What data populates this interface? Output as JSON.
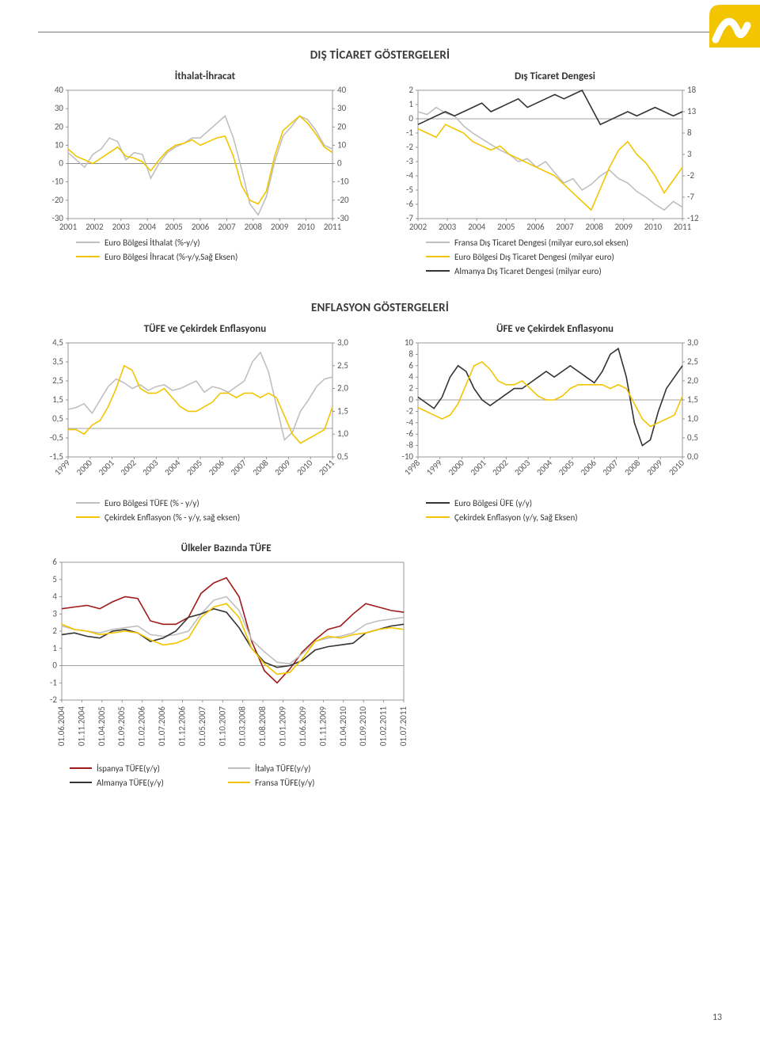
{
  "page_number": "13",
  "sections": {
    "trade": "DIŞ TİCARET GÖSTERGELERİ",
    "inflation": "ENFLASYON GÖSTERGELERİ"
  },
  "charts": {
    "import_export": {
      "type": "line_dual_axis",
      "title": "İthalat-İhracat",
      "xlabels": [
        "2001",
        "2002",
        "2003",
        "2004",
        "2005",
        "2006",
        "2007",
        "2008",
        "2009",
        "2010",
        "2011"
      ],
      "yleft": {
        "min": -30,
        "max": 40,
        "step": 10
      },
      "yright": {
        "min": -30,
        "max": 40,
        "step": 10
      },
      "series": [
        {
          "name": "Euro Bölgesi İthalat (%-y/y)",
          "color": "#bfbfbf",
          "width": 1.6,
          "points": [
            6,
            2,
            -2,
            5,
            8,
            14,
            12,
            2,
            6,
            5,
            -8,
            0,
            6,
            9,
            11,
            14,
            14,
            18,
            22,
            26,
            14,
            -3,
            -22,
            -28,
            -18,
            1,
            15,
            20,
            26,
            24,
            18,
            10,
            8
          ]
        },
        {
          "name": "Euro Bölgesi İhracat (%-y/y,Sağ Eksen)",
          "color": "#f2c500",
          "width": 1.6,
          "points": [
            8,
            4,
            2,
            0,
            3,
            6,
            9,
            4,
            3,
            1,
            -4,
            2,
            7,
            10,
            11,
            13,
            10,
            12,
            14,
            15,
            4,
            -12,
            -20,
            -22,
            -15,
            4,
            18,
            22,
            26,
            22,
            16,
            9,
            6
          ]
        }
      ],
      "legend": [
        {
          "color": "#bfbfbf",
          "label": "Euro Bölgesi İthalat (%-y/y)"
        },
        {
          "color": "#f2c500",
          "label": "Euro Bölgesi İhracat (%-y/y,Sağ Eksen)"
        }
      ]
    },
    "trade_balance": {
      "type": "line_dual_axis",
      "title": "Dış Ticaret Dengesi",
      "xlabels": [
        "2002",
        "2003",
        "2004",
        "2005",
        "2006",
        "2007",
        "2008",
        "2009",
        "2010",
        "2011"
      ],
      "yleft": {
        "min": -7,
        "max": 2,
        "step": 1
      },
      "yright": {
        "min": -12,
        "max": 18,
        "step": 5
      },
      "series": [
        {
          "name": "Fransa Dış Ticaret Dengesi (milyar euro,sol eksen)",
          "color": "#bfbfbf",
          "width": 1.6,
          "points": [
            0.5,
            0.3,
            0.8,
            0.4,
            0.2,
            -0.5,
            -1.0,
            -1.4,
            -1.8,
            -2.2,
            -2.5,
            -3.0,
            -2.8,
            -3.4,
            -3.0,
            -3.8,
            -4.5,
            -4.2,
            -5.0,
            -4.6,
            -4.0,
            -3.6,
            -4.2,
            -4.5,
            -5.1,
            -5.5,
            -6.0,
            -6.4,
            -5.8,
            -6.2
          ]
        },
        {
          "name": "Euro Bölgesi Dış Ticaret Dengesi (milyar euro)",
          "color": "#f2c500",
          "width": 1.6,
          "points": [
            9,
            8,
            7,
            10,
            9,
            8,
            6,
            5,
            4,
            5,
            3,
            2,
            1,
            0,
            -1,
            -2,
            -4,
            -6,
            -8,
            -10,
            -5,
            0,
            4,
            6,
            3,
            1,
            -2,
            -6,
            -3,
            0
          ]
        },
        {
          "name": "Almanya Dış Ticaret Dengesi (milyar euro)",
          "color": "#333333",
          "width": 1.6,
          "points": [
            10,
            11,
            12,
            13,
            12,
            13,
            14,
            15,
            13,
            14,
            15,
            16,
            14,
            15,
            16,
            17,
            16,
            17,
            18,
            14,
            10,
            11,
            12,
            13,
            12,
            13,
            14,
            13,
            12,
            13
          ]
        }
      ],
      "legend": [
        {
          "color": "#bfbfbf",
          "label": "Fransa Dış Ticaret Dengesi (milyar euro,sol eksen)"
        },
        {
          "color": "#f2c500",
          "label": "Euro Bölgesi Dış Ticaret Dengesi (milyar euro)"
        },
        {
          "color": "#333333",
          "label": "Almanya Dış Ticaret Dengesi (milyar euro)"
        }
      ]
    },
    "cpi_core": {
      "type": "line_dual_axis",
      "title": "TÜFE ve Çekirdek Enflasyonu",
      "xlabels": [
        "1999",
        "2000",
        "2001",
        "2002",
        "2003",
        "2004",
        "2005",
        "2006",
        "2007",
        "2008",
        "2009",
        "2010",
        "2011"
      ],
      "xlabel_rotate": -45,
      "yleft": {
        "min": -1.5,
        "max": 4.5,
        "step": 1.0,
        "decimals": 1
      },
      "yright": {
        "min": 0.5,
        "max": 3.0,
        "step": 0.5,
        "decimals": 1
      },
      "series": [
        {
          "name": "Euro Bölgesi TÜFE (% - y/y)",
          "color": "#bfbfbf",
          "width": 1.6,
          "points": [
            1.0,
            1.1,
            1.3,
            0.8,
            1.5,
            2.2,
            2.6,
            2.4,
            2.1,
            2.3,
            2.0,
            2.2,
            2.3,
            2.0,
            2.1,
            2.3,
            2.5,
            1.9,
            2.2,
            2.1,
            1.9,
            2.2,
            2.5,
            3.5,
            4.0,
            3.0,
            1.2,
            -0.6,
            -0.2,
            0.9,
            1.5,
            2.2,
            2.6,
            2.7
          ]
        },
        {
          "name": "Çekirdek Enflasyon (% - y/y, sağ eksen)",
          "color": "#f2c500",
          "width": 1.6,
          "points": [
            1.1,
            1.1,
            1.0,
            1.2,
            1.3,
            1.6,
            2.0,
            2.5,
            2.4,
            2.0,
            1.9,
            1.9,
            2.0,
            1.8,
            1.6,
            1.5,
            1.5,
            1.6,
            1.7,
            1.9,
            1.9,
            1.8,
            1.9,
            1.9,
            1.8,
            1.9,
            1.8,
            1.4,
            1.0,
            0.8,
            0.9,
            1.0,
            1.1,
            1.6
          ]
        }
      ],
      "legend": [
        {
          "color": "#bfbfbf",
          "label": "Euro Bölgesi TÜFE (% - y/y)"
        },
        {
          "color": "#f2c500",
          "label": "Çekirdek Enflasyon (% - y/y, sağ eksen)"
        }
      ]
    },
    "ppi_core": {
      "type": "line_dual_axis",
      "title": "ÜFE ve Çekirdek Enflasyonu",
      "xlabels": [
        "1998",
        "1999",
        "2000",
        "2001",
        "2002",
        "2003",
        "2004",
        "2005",
        "2006",
        "2007",
        "2008",
        "2009",
        "2010"
      ],
      "xlabel_rotate": -45,
      "yleft": {
        "min": -10,
        "max": 10,
        "step": 2
      },
      "yright": {
        "min": 0.0,
        "max": 3.0,
        "step": 0.5,
        "decimals": 1
      },
      "series": [
        {
          "name": "Euro Bölgesi ÜFE (y/y)",
          "color": "#333333",
          "width": 1.6,
          "points": [
            0.5,
            -0.5,
            -1.5,
            0.5,
            4,
            6,
            5,
            2,
            0,
            -1,
            0,
            1,
            2,
            2,
            3,
            4,
            5,
            4,
            5,
            6,
            5,
            4,
            3,
            5,
            8,
            9,
            4,
            -4,
            -8,
            -7,
            -2,
            2,
            4,
            6
          ]
        },
        {
          "name": "Çekirdek Enflasyon (y/y, Sağ Eksen)",
          "color": "#f2c500",
          "width": 1.6,
          "points": [
            1.3,
            1.2,
            1.1,
            1.0,
            1.1,
            1.4,
            1.9,
            2.4,
            2.5,
            2.3,
            2.0,
            1.9,
            1.9,
            2.0,
            1.8,
            1.6,
            1.5,
            1.5,
            1.6,
            1.8,
            1.9,
            1.9,
            1.9,
            1.9,
            1.8,
            1.9,
            1.8,
            1.4,
            1.0,
            0.8,
            0.9,
            1.0,
            1.1,
            1.6
          ]
        }
      ],
      "legend": [
        {
          "color": "#333333",
          "label": "Euro Bölgesi ÜFE (y/y)"
        },
        {
          "color": "#f2c500",
          "label": "Çekirdek Enflasyon (y/y, Sağ Eksen)"
        }
      ]
    },
    "country_cpi": {
      "type": "multiline",
      "title": "Ülkeler Bazında  TÜFE",
      "xlabels": [
        "01.06.2004",
        "01.11.2004",
        "01.04.2005",
        "01.09.2005",
        "01.02.2006",
        "01.07.2006",
        "01.12.2006",
        "01.05.2007",
        "01.10.2007",
        "01.03.2008",
        "01.08.2008",
        "01.01.2009",
        "01.06.2009",
        "01.11.2009",
        "01.04.2010",
        "01.09.2010",
        "01.02.2011",
        "01.07.2011"
      ],
      "xlabel_rotate": -90,
      "y": {
        "min": -2,
        "max": 6,
        "step": 1
      },
      "series": [
        {
          "name": "İspanya TÜFE(y/y)",
          "color": "#9e1b1b",
          "width": 1.6,
          "points": [
            3.3,
            3.4,
            3.5,
            3.3,
            3.7,
            4.0,
            3.9,
            2.6,
            2.4,
            2.4,
            2.8,
            4.2,
            4.8,
            5.1,
            4.0,
            1.4,
            -0.3,
            -1.0,
            -0.2,
            0.8,
            1.5,
            2.1,
            2.3,
            3.0,
            3.6,
            3.4,
            3.2,
            3.1
          ]
        },
        {
          "name": "İtalya TÜFE(y/y)",
          "color": "#bfbfbf",
          "width": 1.6,
          "points": [
            2.3,
            2.1,
            2.0,
            1.9,
            2.1,
            2.2,
            2.3,
            1.8,
            1.7,
            1.8,
            2.0,
            3.0,
            3.8,
            4.0,
            3.2,
            1.5,
            0.8,
            0.2,
            0.1,
            0.7,
            1.4,
            1.6,
            1.7,
            1.9,
            2.4,
            2.6,
            2.7,
            2.8
          ]
        },
        {
          "name": "Almanya TÜFE(y/y)",
          "color": "#333333",
          "width": 1.6,
          "points": [
            1.8,
            1.9,
            1.7,
            1.6,
            2.0,
            2.1,
            1.9,
            1.4,
            1.6,
            2.0,
            2.8,
            3.0,
            3.3,
            3.1,
            2.2,
            1.0,
            0.2,
            -0.1,
            0.0,
            0.3,
            0.9,
            1.1,
            1.2,
            1.3,
            1.9,
            2.1,
            2.3,
            2.4
          ]
        },
        {
          "name": "Fransa TÜFE(y/y)",
          "color": "#f2c500",
          "width": 1.6,
          "points": [
            2.4,
            2.1,
            2.0,
            1.8,
            1.9,
            2.0,
            1.9,
            1.5,
            1.2,
            1.3,
            1.6,
            2.8,
            3.4,
            3.6,
            2.8,
            1.0,
            0.1,
            -0.5,
            -0.4,
            0.4,
            1.4,
            1.7,
            1.6,
            1.8,
            1.9,
            2.1,
            2.2,
            2.1
          ]
        }
      ],
      "legend_rows": [
        [
          {
            "color": "#9e1b1b",
            "label": "İspanya TÜFE(y/y)"
          },
          {
            "color": "#bfbfbf",
            "label": "İtalya TÜFE(y/y)"
          }
        ],
        [
          {
            "color": "#333333",
            "label": "Almanya TÜFE(y/y)"
          },
          {
            "color": "#f2c500",
            "label": "Fransa TÜFE(y/y)"
          }
        ]
      ]
    }
  },
  "colors": {
    "grid": "#bfbfbf",
    "axis": "#808080",
    "gold": "#f2c500",
    "grey": "#bfbfbf",
    "black": "#333333",
    "darkred": "#9e1b1b"
  }
}
